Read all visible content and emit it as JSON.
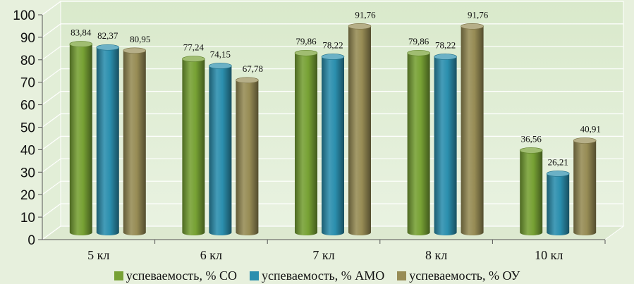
{
  "chart_data": {
    "type": "bar",
    "categories": [
      "5 кл",
      "6 кл",
      "7 кл",
      "8 кл",
      "10 кл"
    ],
    "series": [
      {
        "name": "успеваемость, % СО",
        "color": "#77a134",
        "values": [
          83.84,
          77.24,
          79.86,
          79.86,
          36.56
        ],
        "labels": [
          "83,84",
          "77,24",
          "79,86",
          "79,86",
          "36,56"
        ]
      },
      {
        "name": "успеваемость, % АМО",
        "color": "#2b8fae",
        "values": [
          82.37,
          74.15,
          78.22,
          78.22,
          26.21
        ],
        "labels": [
          "82,37",
          "74,15",
          "78,22",
          "78,22",
          "26,21"
        ]
      },
      {
        "name": "успеваемость, % ОУ",
        "color": "#978c55",
        "values": [
          80.95,
          67.78,
          91.76,
          91.76,
          40.91
        ],
        "labels": [
          "80,95",
          "67,78",
          "91,76",
          "91,76",
          "40,91"
        ]
      }
    ],
    "yticks": [
      "0",
      "10",
      "20",
      "30",
      "40",
      "50",
      "60",
      "70",
      "80",
      "90",
      "100"
    ],
    "ylim": [
      0,
      100
    ],
    "grid": true,
    "legend_position": "bottom"
  }
}
